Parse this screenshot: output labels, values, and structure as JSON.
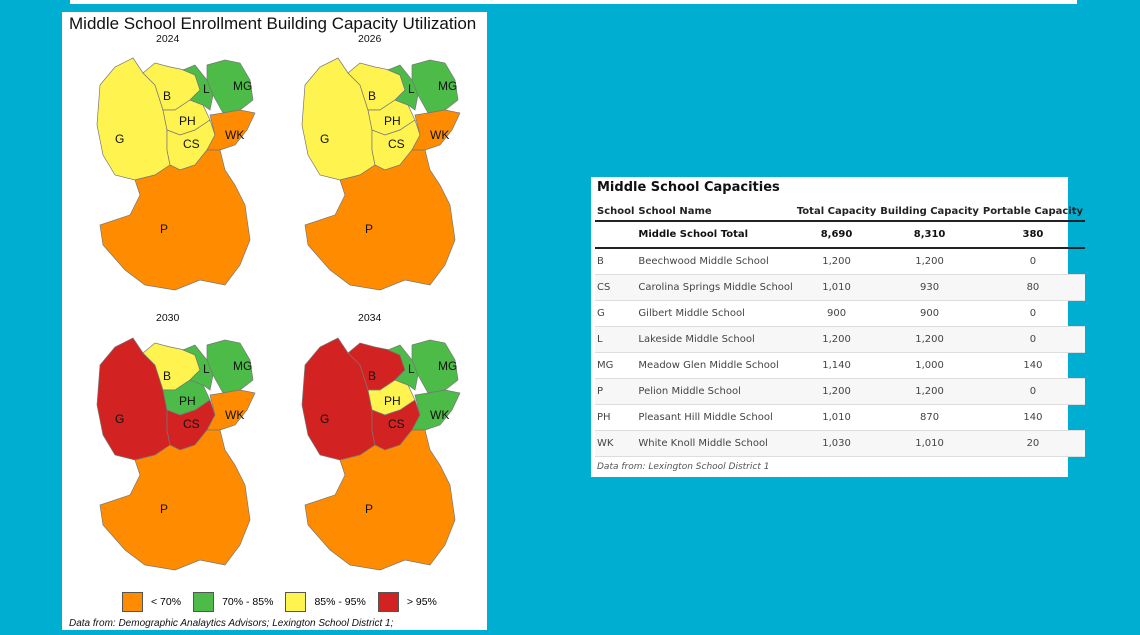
{
  "map_panel": {
    "title": "Middle School Enrollment Building Capacity Utilization",
    "source": "Data from: Demographic Analaytics Advisors; Lexington School District 1;",
    "colors": {
      "lt70": "#ff8c00",
      "70_85": "#4cbb47",
      "85_95": "#fff34f",
      "gt95": "#d32222"
    },
    "legend": [
      {
        "label": "< 70%",
        "key": "lt70"
      },
      {
        "label": "70% - 85%",
        "key": "70_85"
      },
      {
        "label": "85% - 95%",
        "key": "85_95"
      },
      {
        "label": "> 95%",
        "key": "gt95"
      }
    ],
    "maps": [
      {
        "year": "2024",
        "zones": {
          "G": "85_95",
          "B": "85_95",
          "PH": "85_95",
          "CS": "85_95",
          "L": "70_85",
          "MG": "70_85",
          "WK": "lt70",
          "P": "lt70"
        }
      },
      {
        "year": "2026",
        "zones": {
          "G": "85_95",
          "B": "85_95",
          "PH": "85_95",
          "CS": "85_95",
          "L": "70_85",
          "MG": "70_85",
          "WK": "lt70",
          "P": "lt70"
        }
      },
      {
        "year": "2030",
        "zones": {
          "G": "gt95",
          "B": "85_95",
          "PH": "70_85",
          "CS": "gt95",
          "L": "70_85",
          "MG": "70_85",
          "WK": "lt70",
          "P": "lt70"
        }
      },
      {
        "year": "2034",
        "zones": {
          "G": "gt95",
          "B": "gt95",
          "PH": "85_95",
          "CS": "gt95",
          "L": "70_85",
          "MG": "70_85",
          "WK": "70_85",
          "P": "lt70"
        }
      }
    ]
  },
  "table": {
    "title": "Middle School Capacities",
    "headers": [
      "School",
      "School Name",
      "Total Capacity",
      "Building Capacity",
      "Portable Capacity"
    ],
    "total": {
      "school": "",
      "name": "Middle School Total",
      "total": "8,690",
      "building": "8,310",
      "portable": "380"
    },
    "rows": [
      {
        "school": "B",
        "name": "Beechwood Middle School",
        "total": "1,200",
        "building": "1,200",
        "portable": "0"
      },
      {
        "school": "CS",
        "name": "Carolina Springs Middle School",
        "total": "1,010",
        "building": "930",
        "portable": "80"
      },
      {
        "school": "G",
        "name": "Gilbert Middle School",
        "total": "900",
        "building": "900",
        "portable": "0"
      },
      {
        "school": "L",
        "name": "Lakeside Middle School",
        "total": "1,200",
        "building": "1,200",
        "portable": "0"
      },
      {
        "school": "MG",
        "name": "Meadow Glen Middle School",
        "total": "1,140",
        "building": "1,000",
        "portable": "140"
      },
      {
        "school": "P",
        "name": "Pelion Middle School",
        "total": "1,200",
        "building": "1,200",
        "portable": "0"
      },
      {
        "school": "PH",
        "name": "Pleasant Hill Middle School",
        "total": "1,010",
        "building": "870",
        "portable": "140"
      },
      {
        "school": "WK",
        "name": "White Knoll Middle School",
        "total": "1,030",
        "building": "1,010",
        "portable": "20"
      }
    ],
    "source": "Data from: Lexington School District 1"
  }
}
